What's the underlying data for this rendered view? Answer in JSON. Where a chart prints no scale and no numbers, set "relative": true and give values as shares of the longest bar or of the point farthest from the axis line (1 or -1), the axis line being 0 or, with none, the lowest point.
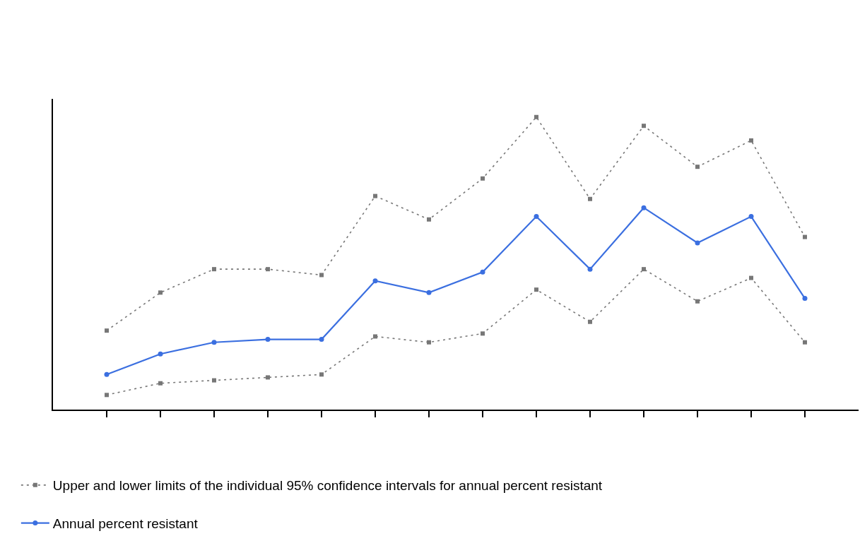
{
  "chart_data": {
    "type": "line",
    "relative": true,
    "categories": [
      null,
      null,
      null,
      null,
      null,
      null,
      null,
      null,
      null,
      null,
      null,
      null,
      null,
      null
    ],
    "series": [
      {
        "name": "Upper and lower limits of the individual 95% confidence intervals for annual percent resistant",
        "color": "#777777",
        "line_style": "dotted",
        "marker": "square",
        "values": [
          0.27,
          0.4,
          0.48,
          0.48,
          0.46,
          0.73,
          0.65,
          0.79,
          1.0,
          0.72,
          0.97,
          0.83,
          0.92,
          0.59
        ]
      },
      {
        "color": "#777777",
        "line_style": "dotted",
        "marker": "square",
        "values": [
          0.05,
          0.09,
          0.1,
          0.11,
          0.12,
          0.25,
          0.23,
          0.26,
          0.41,
          0.3,
          0.48,
          0.37,
          0.45,
          0.23
        ]
      },
      {
        "name": "Annual percent resistant",
        "color": "#3b6fe0",
        "line_style": "solid",
        "marker": "circle",
        "values": [
          0.12,
          0.19,
          0.23,
          0.24,
          0.24,
          0.44,
          0.4,
          0.47,
          0.66,
          0.48,
          0.69,
          0.57,
          0.66,
          0.38
        ]
      }
    ],
    "legend": "bottom left"
  }
}
